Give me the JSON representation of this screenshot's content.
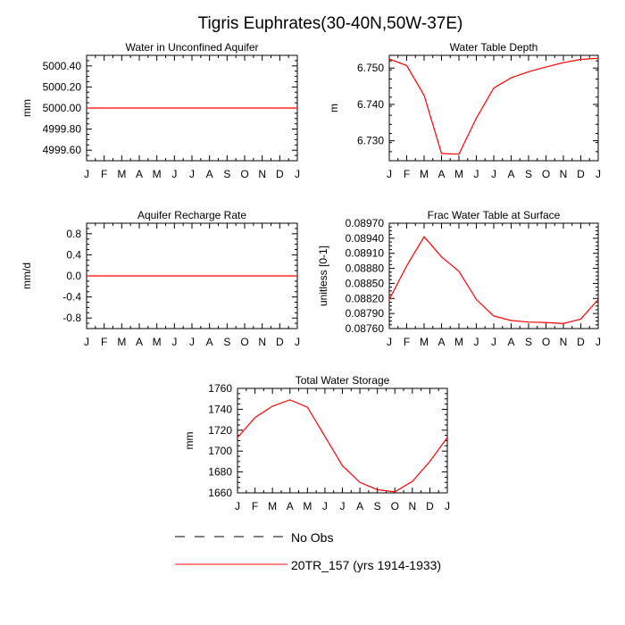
{
  "title": "Tigris Euphrates(30-40N,50W-37E)",
  "line_color": "#ff0000",
  "axis_color": "#000000",
  "chart_data": [
    {
      "type": "line",
      "title": "Water in Unconfined Aquifer",
      "xlabel": "",
      "ylabel": "mm",
      "categories": [
        "J",
        "F",
        "M",
        "A",
        "M",
        "J",
        "J",
        "A",
        "S",
        "O",
        "N",
        "D",
        "J"
      ],
      "ylim": [
        4999.5,
        5000.5
      ],
      "yticks": [
        "4999.60",
        "4999.80",
        "5000.00",
        "5000.20",
        "5000.40"
      ],
      "yticks_values": [
        4999.6,
        4999.8,
        5000.0,
        5000.2,
        5000.4
      ],
      "series": [
        {
          "name": "20TR_157 (yrs 1914-1933)",
          "values": [
            5000,
            5000,
            5000,
            5000,
            5000,
            5000,
            5000,
            5000,
            5000,
            5000,
            5000,
            5000,
            5000
          ]
        }
      ]
    },
    {
      "type": "line",
      "title": "Water Table Depth",
      "xlabel": "",
      "ylabel": "m",
      "categories": [
        "J",
        "F",
        "M",
        "A",
        "M",
        "J",
        "J",
        "A",
        "S",
        "O",
        "N",
        "D",
        "J"
      ],
      "ylim": [
        6.7245,
        6.7535
      ],
      "yticks": [
        "6.730",
        "6.740",
        "6.750"
      ],
      "yticks_values": [
        6.73,
        6.74,
        6.75
      ],
      "series": [
        {
          "name": "20TR_157 (yrs 1914-1933)",
          "values": [
            6.7525,
            6.7507,
            6.7425,
            6.7265,
            6.7263,
            6.7362,
            6.7445,
            6.7473,
            6.749,
            6.7503,
            6.7515,
            6.7524,
            6.7527
          ]
        }
      ]
    },
    {
      "type": "line",
      "title": "Aquifer Recharge Rate",
      "xlabel": "",
      "ylabel": "mm/d",
      "categories": [
        "J",
        "F",
        "M",
        "A",
        "M",
        "J",
        "J",
        "A",
        "S",
        "O",
        "N",
        "D",
        "J"
      ],
      "ylim": [
        -1.0,
        1.0
      ],
      "yticks": [
        "-0.8",
        "-0.4",
        "0.0",
        "0.4",
        "0.8"
      ],
      "yticks_values": [
        -0.8,
        -0.4,
        0.0,
        0.4,
        0.8
      ],
      "series": [
        {
          "name": "20TR_157 (yrs 1914-1933)",
          "values": [
            0,
            0,
            0,
            0,
            0,
            0,
            0,
            0,
            0,
            0,
            0,
            0,
            0
          ]
        }
      ]
    },
    {
      "type": "line",
      "title": "Frac Water Table at Surface",
      "xlabel": "",
      "ylabel": "unitless [0-1]",
      "categories": [
        "J",
        "F",
        "M",
        "A",
        "M",
        "J",
        "J",
        "A",
        "S",
        "O",
        "N",
        "D",
        "J"
      ],
      "ylim": [
        0.0876,
        0.0897
      ],
      "yticks": [
        "0.08760",
        "0.08790",
        "0.08820",
        "0.08850",
        "0.08880",
        "0.08910",
        "0.08940",
        "0.08970"
      ],
      "yticks_values": [
        0.0876,
        0.0879,
        0.0882,
        0.0885,
        0.0888,
        0.0891,
        0.0894,
        0.0897
      ],
      "series": [
        {
          "name": "20TR_157 (yrs 1914-1933)",
          "values": [
            0.08818,
            0.08885,
            0.08943,
            0.08903,
            0.08874,
            0.08818,
            0.08785,
            0.08776,
            0.08773,
            0.08772,
            0.0877,
            0.08779,
            0.08818
          ]
        }
      ]
    },
    {
      "type": "line",
      "title": "Total Water Storage",
      "xlabel": "",
      "ylabel": "mm",
      "categories": [
        "J",
        "F",
        "M",
        "A",
        "M",
        "J",
        "J",
        "A",
        "S",
        "O",
        "N",
        "D",
        "J"
      ],
      "ylim": [
        1660,
        1760
      ],
      "yticks": [
        "1660",
        "1680",
        "1700",
        "1720",
        "1740",
        "1760"
      ],
      "yticks_values": [
        1660,
        1680,
        1700,
        1720,
        1740,
        1760
      ],
      "series": [
        {
          "name": "20TR_157 (yrs 1914-1933)",
          "values": [
            1713,
            1732,
            1743,
            1749,
            1742,
            1714,
            1686,
            1670,
            1663,
            1661,
            1671,
            1690,
            1713
          ]
        }
      ]
    }
  ],
  "legend": [
    {
      "label": "No Obs",
      "style": "dashed",
      "color": "#000000"
    },
    {
      "label": "20TR_157 (yrs 1914-1933)",
      "style": "solid",
      "color": "#ff0000"
    }
  ]
}
